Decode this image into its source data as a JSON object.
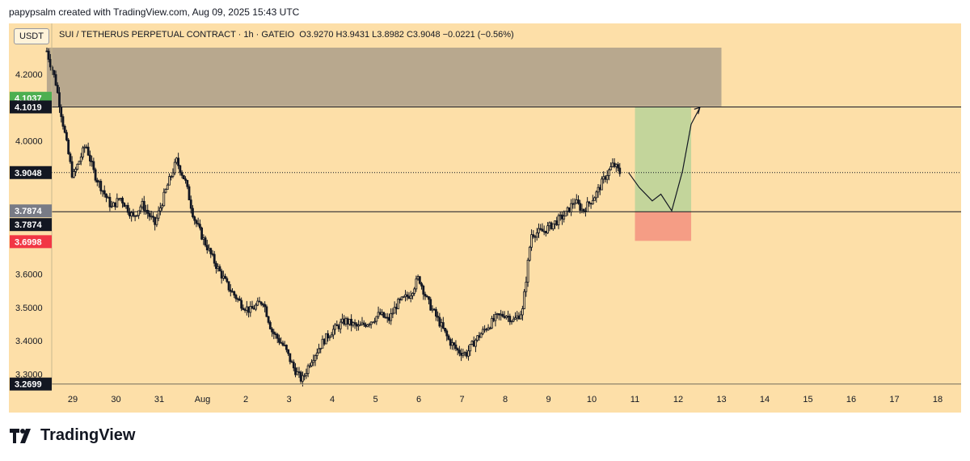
{
  "caption": "papypsalm created with TradingView.com, Aug 09, 2025 15:43 UTC",
  "currency_button": "USDT",
  "legend": {
    "symbol": "SUI / TETHERUS PERPETUAL CONTRACT · 1h · GATEIO",
    "ohlc": "O3.9270  H3.9431  L3.8982  C3.9048  −0.0221 (−0.56%)"
  },
  "brand": "TradingView",
  "colors": {
    "background": "#fddfa8",
    "candle": "#131722",
    "resistance_zone": "#b8a88e",
    "target_zone": "#c3d59b",
    "stop_zone": "#f59d85",
    "badge_green": "#4caf50",
    "badge_dark": "#131722",
    "badge_gray": "#787b86",
    "badge_red": "#f23645"
  },
  "chart_data": {
    "type": "candlestick",
    "timeframe": "1h",
    "x_ticks": [
      "29",
      "30",
      "31",
      "Aug",
      "2",
      "3",
      "4",
      "5",
      "6",
      "7",
      "8",
      "9",
      "10",
      "11",
      "12",
      "13",
      "14",
      "15",
      "16",
      "17",
      "18"
    ],
    "y_ticks": [
      "4.2000",
      "4.0000",
      "3.6000",
      "3.5000",
      "3.4000",
      "3.3000"
    ],
    "ylim": [
      3.26,
      4.29
    ],
    "grid": false,
    "price_anchors": [
      [
        28.4,
        4.27
      ],
      [
        28.6,
        4.18
      ],
      [
        28.9,
        3.96
      ],
      [
        29.0,
        3.89
      ],
      [
        29.3,
        3.99
      ],
      [
        29.5,
        3.9
      ],
      [
        29.9,
        3.8
      ],
      [
        30.1,
        3.83
      ],
      [
        30.4,
        3.77
      ],
      [
        30.6,
        3.81
      ],
      [
        30.9,
        3.75
      ],
      [
        31.2,
        3.87
      ],
      [
        31.4,
        3.94
      ],
      [
        31.6,
        3.88
      ],
      [
        31.8,
        3.77
      ],
      [
        32.0,
        3.71
      ],
      [
        32.3,
        3.63
      ],
      [
        32.6,
        3.56
      ],
      [
        32.9,
        3.51
      ],
      [
        33.1,
        3.49
      ],
      [
        33.4,
        3.52
      ],
      [
        33.6,
        3.43
      ],
      [
        33.9,
        3.38
      ],
      [
        34.1,
        3.32
      ],
      [
        34.3,
        3.28
      ],
      [
        34.5,
        3.34
      ],
      [
        34.8,
        3.4
      ],
      [
        35.0,
        3.43
      ],
      [
        35.3,
        3.46
      ],
      [
        35.6,
        3.44
      ],
      [
        35.9,
        3.46
      ],
      [
        36.1,
        3.48
      ],
      [
        36.3,
        3.46
      ],
      [
        36.5,
        3.51
      ],
      [
        36.8,
        3.54
      ],
      [
        37.0,
        3.59
      ],
      [
        37.2,
        3.52
      ],
      [
        37.5,
        3.45
      ],
      [
        37.7,
        3.4
      ],
      [
        37.9,
        3.37
      ],
      [
        38.1,
        3.36
      ],
      [
        38.3,
        3.4
      ],
      [
        38.5,
        3.43
      ],
      [
        38.8,
        3.47
      ],
      [
        39.0,
        3.48
      ],
      [
        39.2,
        3.46
      ],
      [
        39.4,
        3.49
      ],
      [
        39.6,
        3.72
      ],
      [
        39.9,
        3.73
      ],
      [
        40.1,
        3.75
      ],
      [
        40.4,
        3.78
      ],
      [
        40.6,
        3.82
      ],
      [
        40.8,
        3.79
      ],
      [
        41.1,
        3.84
      ],
      [
        41.3,
        3.89
      ],
      [
        41.5,
        3.93
      ],
      [
        41.65,
        3.905
      ]
    ],
    "last_price": 3.9048,
    "price_labels": [
      {
        "text": "4.1037",
        "value": 4.1037,
        "color": "green"
      },
      {
        "text": "4.1019",
        "value": 4.1019,
        "color": "dark"
      },
      {
        "text": "3.9048",
        "value": 3.9048,
        "color": "dark"
      },
      {
        "text": "3.7874",
        "value": 3.7874,
        "color": "gray"
      },
      {
        "text": "3.7874",
        "value": 3.7874,
        "color": "dark"
      },
      {
        "text": "3.6998",
        "value": 3.6998,
        "color": "red"
      },
      {
        "text": "3.2699",
        "value": 3.2699,
        "color": "dark"
      }
    ],
    "horizontal_lines": [
      4.1019,
      3.7874,
      3.2699
    ],
    "resistance_zone": {
      "x_from": 28.4,
      "x_to": 44.0,
      "y_from": 4.1037,
      "y_to": 4.28
    },
    "position": {
      "x_from": 42.0,
      "x_to": 43.3,
      "entry": 3.7874,
      "target": 4.1019,
      "stop": 3.6998
    },
    "projection_path": [
      [
        41.85,
        3.905
      ],
      [
        42.1,
        3.86
      ],
      [
        42.4,
        3.82
      ],
      [
        42.6,
        3.84
      ],
      [
        42.85,
        3.79
      ],
      [
        43.1,
        3.91
      ],
      [
        43.3,
        4.05
      ],
      [
        43.5,
        4.1
      ]
    ]
  }
}
